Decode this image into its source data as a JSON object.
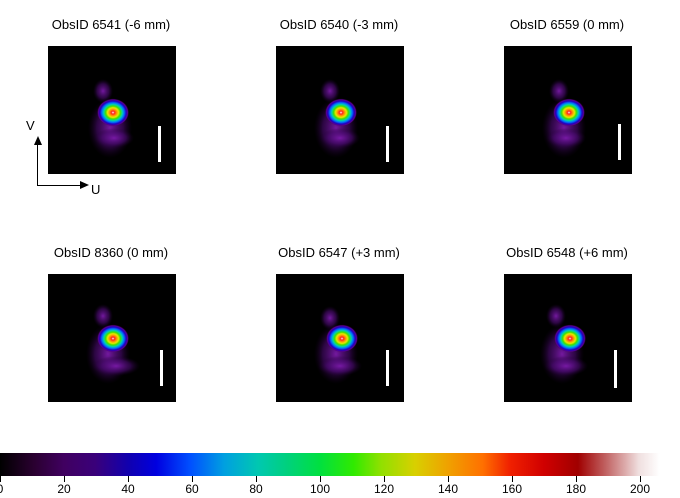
{
  "panels": [
    {
      "title": "ObsID 6541 (-6 mm)"
    },
    {
      "title": "ObsID 6540 (-3 mm)"
    },
    {
      "title": "ObsID 6559 (0 mm)"
    },
    {
      "title": "ObsID 8360 (0 mm)"
    },
    {
      "title": "ObsID 6547 (+3 mm)"
    },
    {
      "title": "ObsID 6548 (+6 mm)"
    }
  ],
  "axes": {
    "v_label": "V",
    "u_label": "U"
  },
  "colorbar": {
    "min": 0,
    "max": 210,
    "ticks": [
      {
        "value": 0,
        "label": "0"
      },
      {
        "value": 20,
        "label": "20"
      },
      {
        "value": 40,
        "label": "40"
      },
      {
        "value": 60,
        "label": "60"
      },
      {
        "value": 80,
        "label": "80"
      },
      {
        "value": 100,
        "label": "100"
      },
      {
        "value": 120,
        "label": "120"
      },
      {
        "value": 140,
        "label": "140"
      },
      {
        "value": 160,
        "label": "160"
      },
      {
        "value": 180,
        "label": "180"
      },
      {
        "value": 200,
        "label": "200"
      }
    ]
  }
}
